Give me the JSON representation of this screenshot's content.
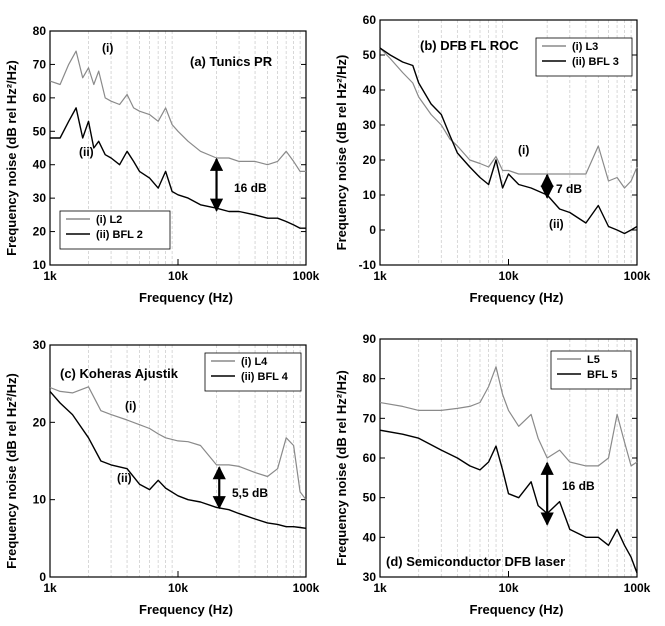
{
  "chart_data": [
    {
      "type": "line",
      "panel_label": "(a)",
      "title": "Tunics PR",
      "xlabel": "Frequency (Hz)",
      "ylabel": "Frequency noise (dB rel Hz²/Hz)",
      "xscale": "log",
      "xlim": [
        1000,
        100000
      ],
      "ylim": [
        10,
        80
      ],
      "xticks": [
        "1k",
        "10k",
        "100k"
      ],
      "yticks": [
        10,
        20,
        30,
        40,
        50,
        60,
        70,
        80
      ],
      "grid": "vertical minor",
      "legend_position": "bottom-left",
      "legend": [
        {
          "tag": "(i)",
          "name": "L2"
        },
        {
          "tag": "(ii)",
          "name": "BFL 2"
        }
      ],
      "series": [
        {
          "name": "L2",
          "color": "#8a8a8a",
          "x": [
            1000,
            1200,
            1400,
            1600,
            1800,
            2000,
            2200,
            2400,
            2700,
            3000,
            3500,
            4000,
            4500,
            5000,
            6000,
            7000,
            8000,
            9000,
            10000,
            12000,
            15000,
            20000,
            25000,
            30000,
            40000,
            50000,
            60000,
            70000,
            80000,
            90000,
            100000
          ],
          "y": [
            65,
            64,
            70,
            74,
            66,
            69,
            64,
            68,
            60,
            59,
            58,
            61,
            57,
            56,
            55,
            53,
            57,
            52,
            50,
            47,
            44,
            42,
            42,
            41,
            41,
            40,
            41,
            44,
            41,
            38,
            38
          ]
        },
        {
          "name": "BFL 2",
          "color": "#000000",
          "x": [
            1000,
            1200,
            1400,
            1600,
            1800,
            2000,
            2200,
            2400,
            2700,
            3000,
            3500,
            4000,
            4500,
            5000,
            6000,
            7000,
            8000,
            9000,
            10000,
            12000,
            15000,
            20000,
            25000,
            30000,
            40000,
            50000,
            60000,
            70000,
            80000,
            90000,
            100000
          ],
          "y": [
            48,
            48,
            53,
            57,
            48,
            53,
            45,
            47,
            43,
            42,
            40,
            44,
            41,
            38,
            36,
            33,
            38,
            32,
            31,
            30,
            28,
            27,
            26,
            26,
            25,
            24,
            24,
            23,
            22,
            21,
            21
          ]
        }
      ],
      "annotations": [
        {
          "text": "(i)",
          "target": "L2"
        },
        {
          "text": "(ii)",
          "target": "BFL 2"
        },
        {
          "text": "16 dB",
          "arrow_x": 20000,
          "from": 42,
          "to": 26
        }
      ]
    },
    {
      "type": "line",
      "panel_label": "(b)",
      "title": "DFB FL ROC",
      "xlabel": "Frequency (Hz)",
      "ylabel": "Frequency noise (dB rel Hz²/Hz)",
      "xscale": "log",
      "xlim": [
        1000,
        100000
      ],
      "ylim": [
        -10,
        60
      ],
      "xticks": [
        "1k",
        "10k",
        "100k"
      ],
      "yticks": [
        -10,
        0,
        10,
        20,
        30,
        40,
        50,
        60
      ],
      "grid": "vertical minor",
      "legend_position": "top-right",
      "legend": [
        {
          "tag": "(i)",
          "name": "L3"
        },
        {
          "tag": "(ii)",
          "name": "BFL 3"
        }
      ],
      "series": [
        {
          "name": "L3",
          "color": "#8a8a8a",
          "x": [
            1000,
            1200,
            1500,
            1800,
            2000,
            2500,
            3000,
            3500,
            4000,
            5000,
            6000,
            7000,
            8000,
            9000,
            10000,
            12000,
            15000,
            20000,
            25000,
            30000,
            40000,
            50000,
            60000,
            70000,
            80000,
            90000,
            100000
          ],
          "y": [
            52,
            49,
            45,
            42,
            38,
            33,
            30,
            26,
            24,
            20,
            19,
            18,
            21,
            17,
            17,
            16,
            16,
            16,
            16,
            16,
            16,
            24,
            14,
            15,
            12,
            14,
            18
          ]
        },
        {
          "name": "BFL 3",
          "color": "#000000",
          "x": [
            1000,
            1200,
            1500,
            1800,
            2000,
            2500,
            3000,
            3500,
            4000,
            5000,
            6000,
            7000,
            8000,
            9000,
            10000,
            12000,
            15000,
            20000,
            25000,
            30000,
            40000,
            50000,
            60000,
            70000,
            80000,
            90000,
            100000
          ],
          "y": [
            52,
            50,
            48,
            47,
            42,
            36,
            33,
            27,
            22,
            18,
            15,
            13,
            20,
            12,
            16,
            13,
            12,
            10,
            6,
            5,
            2,
            7,
            1,
            0,
            -1,
            0,
            1
          ]
        }
      ],
      "annotations": [
        {
          "text": "(i)",
          "target": "L3"
        },
        {
          "text": "(ii)",
          "target": "BFL 3"
        },
        {
          "text": "7 dB",
          "arrow_x": 20000,
          "from": 16,
          "to": 9
        }
      ]
    },
    {
      "type": "line",
      "panel_label": "(c)",
      "title": "Koheras Ajustik",
      "xlabel": "Frequency (Hz)",
      "ylabel": "Frequency noise (dB rel Hz²/Hz)",
      "xscale": "log",
      "xlim": [
        1000,
        100000
      ],
      "ylim": [
        0,
        30
      ],
      "xticks": [
        "1k",
        "10k",
        "100k"
      ],
      "yticks": [
        0,
        10,
        20,
        30
      ],
      "grid": "vertical minor",
      "legend_position": "top-right",
      "legend": [
        {
          "tag": "(i)",
          "name": "L4"
        },
        {
          "tag": "(ii)",
          "name": "BFL 4"
        }
      ],
      "series": [
        {
          "name": "L4",
          "color": "#8a8a8a",
          "x": [
            1000,
            1200,
            1500,
            2000,
            2500,
            3000,
            4000,
            5000,
            6000,
            7000,
            8000,
            10000,
            12000,
            15000,
            20000,
            25000,
            30000,
            40000,
            50000,
            60000,
            70000,
            80000,
            90000,
            100000
          ],
          "y": [
            24.5,
            24,
            23.8,
            24.6,
            21.5,
            21,
            20.3,
            19.7,
            19.2,
            18.5,
            18,
            17.6,
            17.5,
            17,
            14.5,
            14.5,
            14.3,
            13.5,
            13,
            14,
            18,
            17,
            11,
            10
          ]
        },
        {
          "name": "BFL 4",
          "color": "#000000",
          "x": [
            1000,
            1200,
            1500,
            2000,
            2500,
            3000,
            4000,
            5000,
            6000,
            7000,
            8000,
            10000,
            12000,
            15000,
            20000,
            25000,
            30000,
            40000,
            50000,
            60000,
            70000,
            80000,
            90000,
            100000
          ],
          "y": [
            24,
            22.5,
            21,
            18,
            15,
            14.5,
            14,
            12,
            11.3,
            12.5,
            11.5,
            10.5,
            10,
            9.7,
            9,
            8.7,
            8.2,
            7.5,
            7,
            6.8,
            6.5,
            6.5,
            6.4,
            6.3
          ]
        }
      ],
      "annotations": [
        {
          "text": "(i)",
          "target": "L4"
        },
        {
          "text": "(ii)",
          "target": "BFL 4"
        },
        {
          "text": "5,5 dB",
          "arrow_x": 21000,
          "from": 14.3,
          "to": 8.8
        }
      ]
    },
    {
      "type": "line",
      "panel_label": "(d)",
      "title": "Semiconductor DFB laser",
      "xlabel": "Frequency (Hz)",
      "ylabel": "Frequency noise (dB rel Hz²/Hz)",
      "xscale": "log",
      "xlim": [
        1000,
        100000
      ],
      "ylim": [
        30,
        90
      ],
      "xticks": [
        "1k",
        "10k",
        "100k"
      ],
      "yticks": [
        30,
        40,
        50,
        60,
        70,
        80,
        90
      ],
      "grid": "vertical minor",
      "legend_position": "top-right",
      "legend": [
        {
          "tag": "",
          "name": "L5"
        },
        {
          "tag": "",
          "name": "BFL 5"
        }
      ],
      "series": [
        {
          "name": "L5",
          "color": "#8a8a8a",
          "x": [
            1000,
            1500,
            2000,
            3000,
            4000,
            5000,
            6000,
            7000,
            8000,
            9000,
            10000,
            12000,
            15000,
            17000,
            20000,
            25000,
            30000,
            40000,
            50000,
            60000,
            70000,
            80000,
            90000,
            100000
          ],
          "y": [
            74,
            73,
            72,
            72,
            72.5,
            73,
            74,
            78,
            83,
            76,
            72,
            68,
            71,
            65,
            60,
            62,
            59,
            58,
            58,
            60,
            71,
            64,
            58,
            59
          ]
        },
        {
          "name": "BFL 5",
          "color": "#000000",
          "x": [
            1000,
            1500,
            2000,
            3000,
            4000,
            5000,
            6000,
            7000,
            8000,
            9000,
            10000,
            12000,
            15000,
            17000,
            20000,
            25000,
            30000,
            40000,
            50000,
            60000,
            70000,
            80000,
            90000,
            100000
          ],
          "y": [
            67,
            66,
            65,
            62,
            60,
            58,
            57,
            59,
            63,
            57,
            51,
            50,
            54,
            48,
            46,
            49,
            42,
            40,
            40,
            38,
            42,
            38,
            35,
            31
          ]
        }
      ],
      "annotations": [
        {
          "text": "16 dB",
          "arrow_x": 20000,
          "from": 59,
          "to": 43
        }
      ]
    }
  ]
}
